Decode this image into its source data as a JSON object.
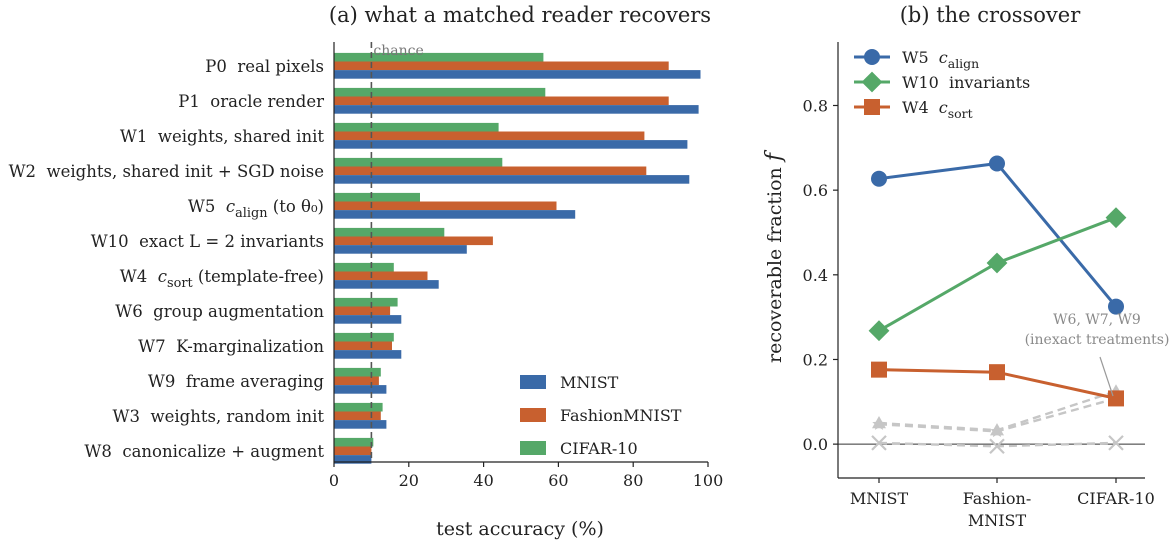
{
  "chart_data": [
    {
      "type": "bar",
      "orientation": "horizontal",
      "title": "(a)  what a matched reader recovers",
      "xlabel": "test accuracy (%)",
      "ylabel": "",
      "xlim": [
        0,
        100
      ],
      "xticks": [
        0,
        20,
        40,
        60,
        80,
        100
      ],
      "grid": false,
      "legend_position": "bottom-right",
      "reference_line": {
        "x": 10,
        "label": "chance"
      },
      "categories": [
        "P0  real pixels",
        "P1  oracle render",
        "W1  weights, shared init",
        "W2  weights, shared init + SGD noise",
        "W5  c_align (to θ₀)",
        "W10  exact L = 2 invariants",
        "W4  c_sort (template-free)",
        "W6  group augmentation",
        "W7  K-marginalization",
        "W9  frame averaging",
        "W3  weights, random init",
        "W8  canonicalize + augment"
      ],
      "series": [
        {
          "name": "CIFAR-10",
          "color": "#55a868",
          "values": [
            56,
            56.5,
            44,
            45,
            23,
            29.5,
            16,
            17,
            16,
            12.5,
            13,
            10.5
          ]
        },
        {
          "name": "FashionMNIST",
          "color": "#c8602f",
          "values": [
            89.5,
            89.5,
            83,
            83.5,
            59.5,
            42.5,
            25,
            15,
            15.5,
            12,
            12.5,
            10
          ]
        },
        {
          "name": "MNIST",
          "color": "#3a6aa8",
          "values": [
            98,
            97.5,
            94.5,
            95,
            64.5,
            35.5,
            28,
            18,
            18,
            14,
            14,
            10
          ]
        }
      ],
      "legend_entries": [
        "MNIST",
        "FashionMNIST",
        "CIFAR-10"
      ]
    },
    {
      "type": "line",
      "title": "(b)  the crossover",
      "xlabel": "",
      "ylabel": "recoverable fraction f",
      "categories": [
        "MNIST",
        "Fashion-\nMNIST",
        "CIFAR-10"
      ],
      "category_lines": [
        [
          "MNIST"
        ],
        [
          "Fashion-",
          "MNIST"
        ],
        [
          "CIFAR-10"
        ]
      ],
      "ylim": [
        -0.08,
        0.95
      ],
      "yticks": [
        "0.0",
        "0.2",
        "0.4",
        "0.6",
        "0.8"
      ],
      "ytick_values": [
        0,
        0.2,
        0.4,
        0.6,
        0.8
      ],
      "grid": false,
      "legend_position": "top-left",
      "zero_line": true,
      "series": [
        {
          "name": "W5  c_align",
          "color": "#3a6aa8",
          "marker": "circle",
          "values": [
            0.627,
            0.663,
            0.325
          ]
        },
        {
          "name": "W10  invariants",
          "color": "#55a868",
          "marker": "diamond",
          "values": [
            0.268,
            0.428,
            0.535
          ]
        },
        {
          "name": "W4  c_sort",
          "color": "#c8602f",
          "marker": "square",
          "values": [
            0.176,
            0.17,
            0.108
          ]
        }
      ],
      "faint_series": [
        {
          "marker": "triangle",
          "values": [
            0.05,
            0.033,
            0.125
          ]
        },
        {
          "marker": "star",
          "values": [
            0.047,
            0.03,
            0.108
          ]
        },
        {
          "marker": "x",
          "values": [
            0.003,
            -0.005,
            0.003
          ]
        }
      ],
      "annotation": {
        "lines": [
          "W6, W7, W9",
          "(inexact treatments)"
        ],
        "points_to": "CIFAR-10"
      }
    }
  ]
}
